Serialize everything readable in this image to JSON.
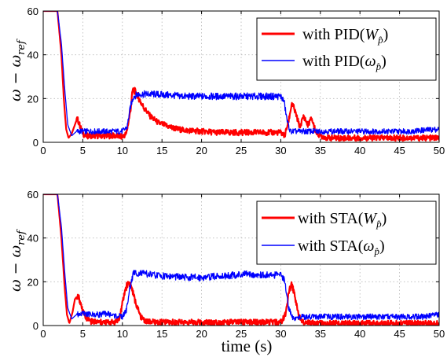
{
  "chart_data": [
    {
      "type": "line",
      "title": "",
      "xlabel": "",
      "ylabel": "ω − ω_ref",
      "ylabel_parts": {
        "main": "ω − ω",
        "sub": "ref"
      },
      "xlim": [
        0,
        50
      ],
      "ylim": [
        0,
        60
      ],
      "xticks": [
        0,
        5,
        10,
        15,
        20,
        25,
        30,
        35,
        40,
        45,
        50
      ],
      "yticks": [
        0,
        20,
        40,
        60
      ],
      "grid": true,
      "legend_position": "top-right",
      "series": [
        {
          "name": "with PID(W_p̂)",
          "legend": {
            "prefix": "with PID(",
            "sym": "W",
            "sub": "p̂",
            "suffix": ")"
          },
          "color": "#ff0000",
          "width": 2.2,
          "points": [
            [
              0,
              60
            ],
            [
              1.8,
              60
            ],
            [
              2.3,
              40
            ],
            [
              2.6,
              20
            ],
            [
              2.9,
              6
            ],
            [
              3.2,
              2
            ],
            [
              3.6,
              4
            ],
            [
              4,
              8
            ],
            [
              4.3,
              11
            ],
            [
              4.7,
              7
            ],
            [
              5.2,
              3
            ],
            [
              6,
              3
            ],
            [
              7,
              3
            ],
            [
              8,
              3
            ],
            [
              9,
              3
            ],
            [
              10,
              2.5
            ],
            [
              10.5,
              4
            ],
            [
              11,
              14
            ],
            [
              11.3,
              24
            ],
            [
              11.7,
              23
            ],
            [
              12.5,
              17
            ],
            [
              13.5,
              12
            ],
            [
              14.5,
              9
            ],
            [
              16,
              7
            ],
            [
              17,
              6
            ],
            [
              18,
              5.5
            ],
            [
              20,
              5
            ],
            [
              22,
              4.5
            ],
            [
              24,
              4.5
            ],
            [
              26,
              4.5
            ],
            [
              28,
              4.5
            ],
            [
              30,
              4.5
            ],
            [
              30.5,
              3
            ],
            [
              31,
              10
            ],
            [
              31.4,
              18
            ],
            [
              31.9,
              13
            ],
            [
              32.4,
              7
            ],
            [
              32.9,
              12
            ],
            [
              33.4,
              8
            ],
            [
              33.9,
              11
            ],
            [
              34.4,
              5
            ],
            [
              35,
              3
            ],
            [
              36,
              2
            ],
            [
              38,
              2
            ],
            [
              40,
              2
            ],
            [
              42,
              2
            ],
            [
              44,
              2
            ],
            [
              46,
              2
            ],
            [
              48,
              2
            ],
            [
              50,
              2
            ]
          ]
        },
        {
          "name": "with PID(ω_p̂)",
          "legend": {
            "prefix": "with PID(",
            "sym": "ω",
            "sub": "p̂",
            "suffix": ")"
          },
          "color": "#0000ff",
          "width": 1.3,
          "points": [
            [
              0,
              60
            ],
            [
              1.8,
              60
            ],
            [
              2.3,
              45
            ],
            [
              2.7,
              25
            ],
            [
              3.1,
              8
            ],
            [
              3.6,
              3
            ],
            [
              4.2,
              5
            ],
            [
              5,
              5
            ],
            [
              6,
              5
            ],
            [
              7,
              5
            ],
            [
              8,
              5
            ],
            [
              9,
              5
            ],
            [
              10,
              5
            ],
            [
              10.6,
              7
            ],
            [
              11,
              16
            ],
            [
              11.4,
              21
            ],
            [
              12,
              22
            ],
            [
              14,
              22
            ],
            [
              16,
              21.5
            ],
            [
              18,
              21
            ],
            [
              20,
              21
            ],
            [
              22,
              21
            ],
            [
              24,
              21
            ],
            [
              26,
              21
            ],
            [
              28,
              21
            ],
            [
              30,
              21
            ],
            [
              30.4,
              19
            ],
            [
              30.8,
              10
            ],
            [
              31.2,
              5
            ],
            [
              32,
              5
            ],
            [
              34,
              5
            ],
            [
              36,
              5
            ],
            [
              38,
              5
            ],
            [
              40,
              5
            ],
            [
              42,
              5
            ],
            [
              44,
              5
            ],
            [
              46,
              5
            ],
            [
              48,
              5.5
            ],
            [
              50,
              6
            ]
          ]
        }
      ]
    },
    {
      "type": "line",
      "title": "",
      "xlabel": "time (s)",
      "ylabel": "ω − ω_ref",
      "ylabel_parts": {
        "main": "ω − ω",
        "sub": "ref"
      },
      "xlim": [
        0,
        50
      ],
      "ylim": [
        0,
        60
      ],
      "xticks": [
        0,
        5,
        10,
        15,
        20,
        25,
        30,
        35,
        40,
        45,
        50
      ],
      "yticks": [
        0,
        20,
        40,
        60
      ],
      "grid": true,
      "legend_position": "top-right",
      "series": [
        {
          "name": "with STA(W_p̂)",
          "legend": {
            "prefix": "with STA(",
            "sym": "W",
            "sub": "p̂",
            "suffix": ")"
          },
          "color": "#ff0000",
          "width": 2.2,
          "points": [
            [
              0,
              60
            ],
            [
              1.8,
              60
            ],
            [
              2.3,
              40
            ],
            [
              2.7,
              18
            ],
            [
              3.0,
              5
            ],
            [
              3.3,
              1
            ],
            [
              3.7,
              6
            ],
            [
              4,
              12
            ],
            [
              4.4,
              14
            ],
            [
              4.8,
              9
            ],
            [
              5.3,
              4
            ],
            [
              6,
              2
            ],
            [
              7,
              1.5
            ],
            [
              8,
              1.5
            ],
            [
              9,
              1.5
            ],
            [
              9.6,
              3
            ],
            [
              10,
              10
            ],
            [
              10.4,
              17
            ],
            [
              10.8,
              20
            ],
            [
              11.2,
              17
            ],
            [
              11.7,
              10
            ],
            [
              12.3,
              4
            ],
            [
              13,
              2
            ],
            [
              14,
              1.5
            ],
            [
              16,
              1.5
            ],
            [
              18,
              1.5
            ],
            [
              20,
              1.5
            ],
            [
              22,
              1.5
            ],
            [
              24,
              1.5
            ],
            [
              26,
              1.5
            ],
            [
              28,
              1.5
            ],
            [
              30,
              1.5
            ],
            [
              30.6,
              5
            ],
            [
              31,
              15
            ],
            [
              31.4,
              19
            ],
            [
              31.8,
              13
            ],
            [
              32.3,
              4
            ],
            [
              33,
              1.5
            ],
            [
              35,
              1
            ],
            [
              38,
              1
            ],
            [
              40,
              1
            ],
            [
              42,
              1
            ],
            [
              44,
              1
            ],
            [
              46,
              1
            ],
            [
              48,
              1
            ],
            [
              50,
              1
            ]
          ]
        },
        {
          "name": "with STA(ω_p̂)",
          "legend": {
            "prefix": "with STA(",
            "sym": "ω",
            "sub": "p̂",
            "suffix": ")"
          },
          "color": "#0000ff",
          "width": 1.3,
          "points": [
            [
              0,
              60
            ],
            [
              1.8,
              60
            ],
            [
              2.3,
              45
            ],
            [
              2.7,
              25
            ],
            [
              3.1,
              8
            ],
            [
              3.6,
              3
            ],
            [
              4.2,
              5
            ],
            [
              5,
              5.5
            ],
            [
              6,
              5
            ],
            [
              7,
              5
            ],
            [
              8,
              5.5
            ],
            [
              9,
              4.5
            ],
            [
              10,
              4
            ],
            [
              10.5,
              7
            ],
            [
              11,
              18
            ],
            [
              11.4,
              24
            ],
            [
              12,
              24
            ],
            [
              14,
              23
            ],
            [
              16,
              22.5
            ],
            [
              18,
              22
            ],
            [
              20,
              22
            ],
            [
              22,
              22.5
            ],
            [
              24,
              23
            ],
            [
              26,
              23.5
            ],
            [
              28,
              23
            ],
            [
              30,
              23
            ],
            [
              30.5,
              21
            ],
            [
              31,
              8
            ],
            [
              31.6,
              3
            ],
            [
              32.5,
              4
            ],
            [
              34,
              4
            ],
            [
              36,
              4
            ],
            [
              38,
              4
            ],
            [
              40,
              4
            ],
            [
              42,
              4
            ],
            [
              44,
              4
            ],
            [
              46,
              4
            ],
            [
              48,
              4
            ],
            [
              50,
              5
            ]
          ]
        }
      ]
    }
  ]
}
